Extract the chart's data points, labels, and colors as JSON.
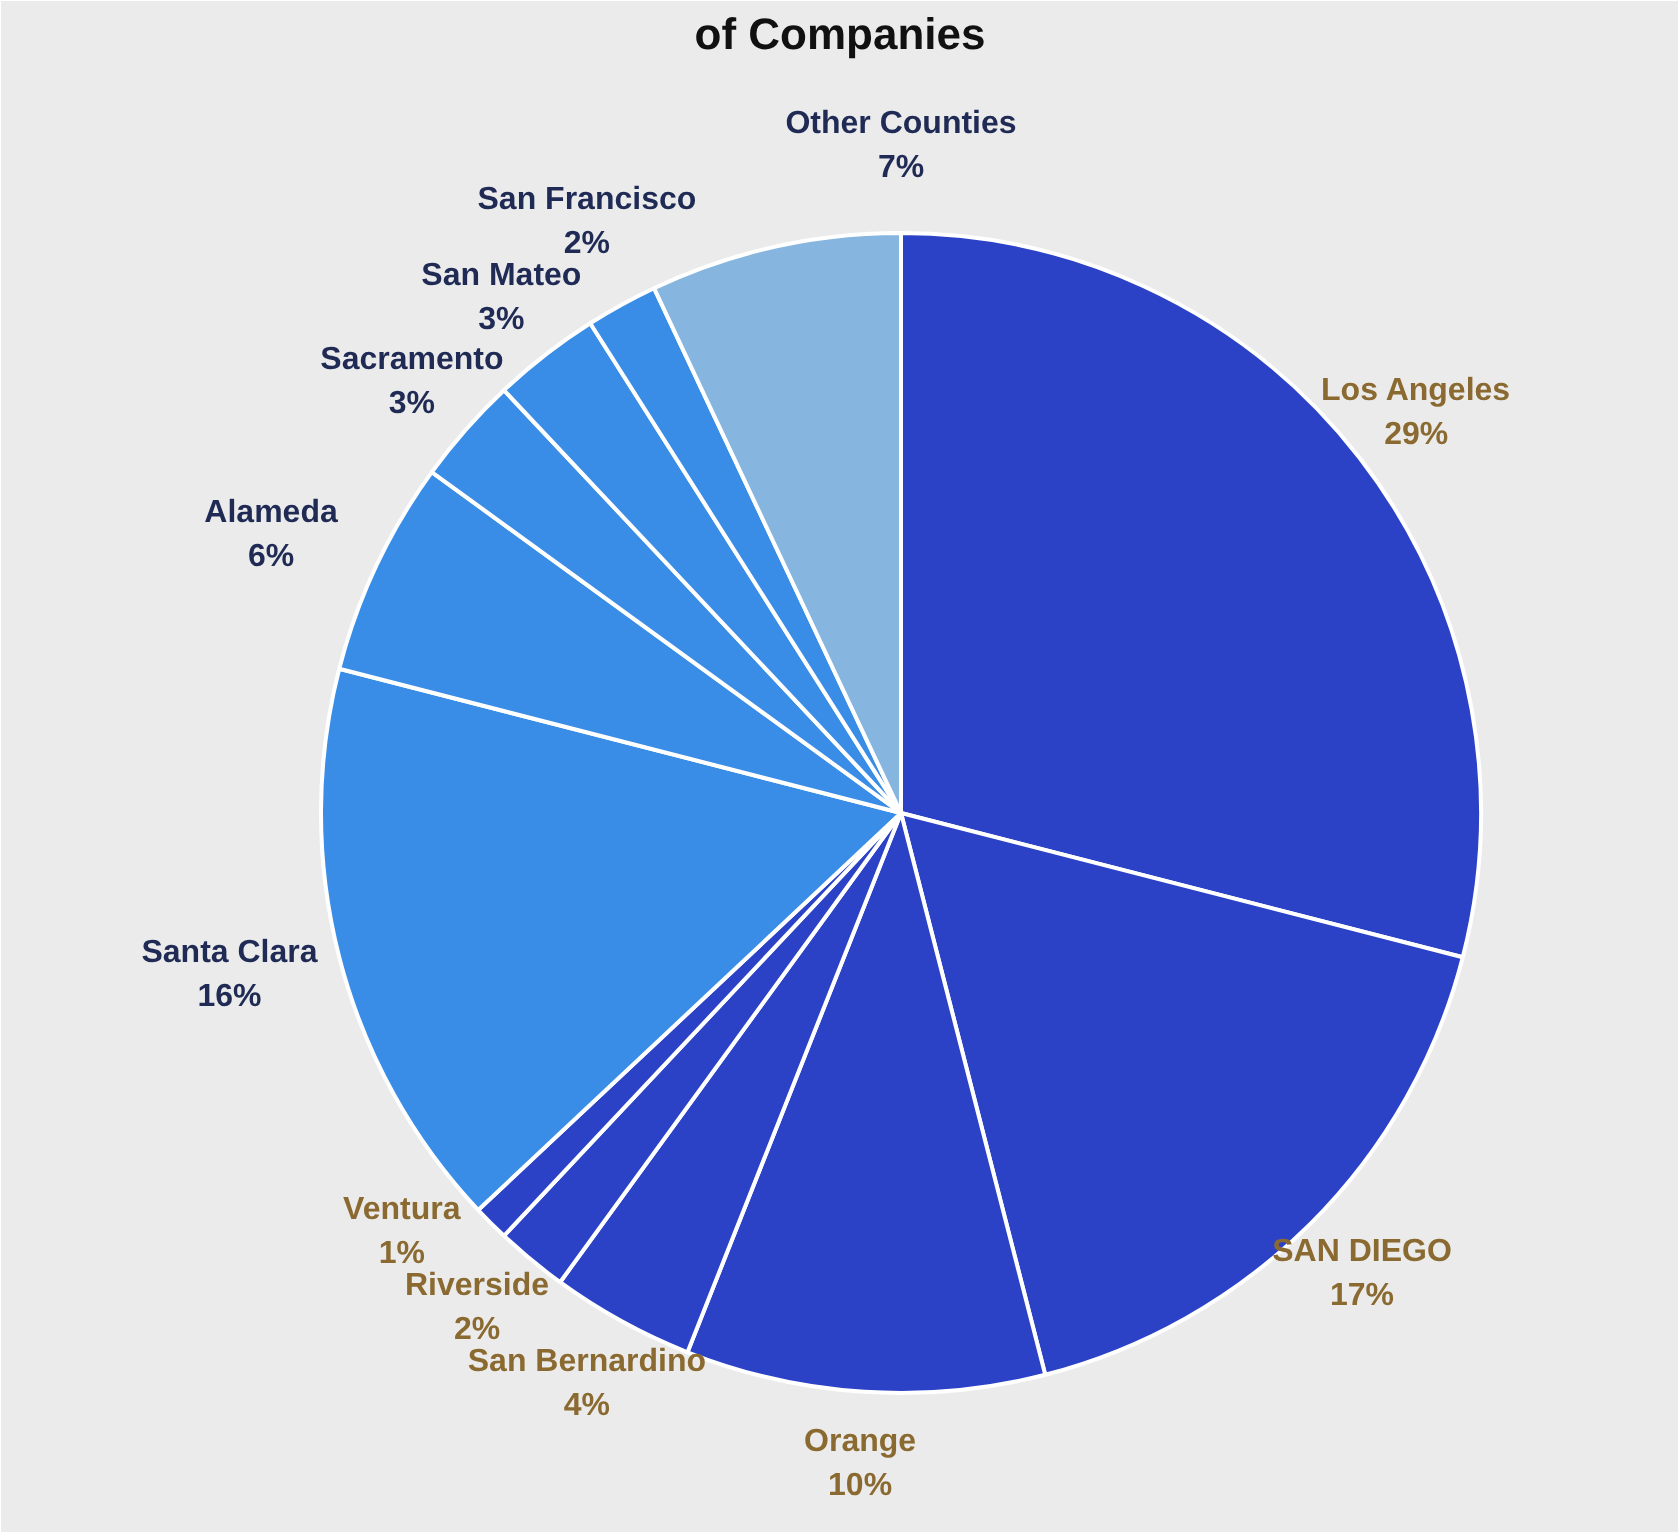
{
  "chart_data": {
    "type": "pie",
    "title": "of Companies",
    "categories": [
      "Los Angeles",
      "SAN DIEGO",
      "Orange",
      "San Bernardino",
      "Riverside",
      "Ventura",
      "Santa Clara",
      "Alameda",
      "Sacramento",
      "San Mateo",
      "San Francisco",
      "Other Counties"
    ],
    "values": [
      29,
      17,
      10,
      4,
      2,
      1,
      16,
      6,
      3,
      3,
      2,
      7
    ],
    "colors": [
      "#2b42c6",
      "#2b42c6",
      "#2b42c6",
      "#2b42c6",
      "#2b42c6",
      "#2b42c6",
      "#3a8de6",
      "#3a8de6",
      "#3a8de6",
      "#3a8de6",
      "#3a8de6",
      "#86b6e0"
    ],
    "value_labels": [
      "29%",
      "17%",
      "10%",
      "4%",
      "2%",
      "1%",
      "16%",
      "6%",
      "3%",
      "3%",
      "2%",
      "7%"
    ]
  }
}
